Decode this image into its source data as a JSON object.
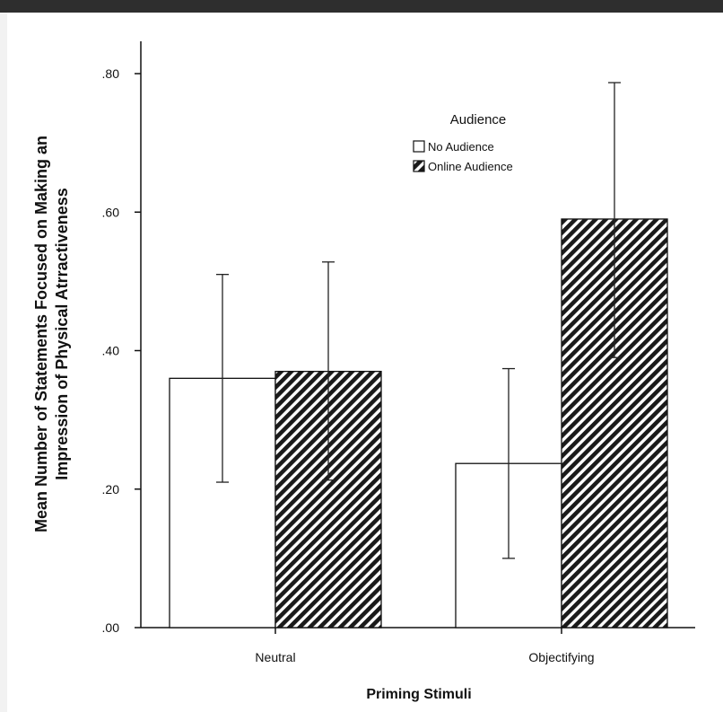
{
  "chart_data": {
    "type": "bar",
    "categories": [
      "Neutral",
      "Objectifying"
    ],
    "series": [
      {
        "name": "No Audience",
        "values": [
          0.36,
          0.237
        ],
        "error_low": [
          0.21,
          0.1
        ],
        "error_high": [
          0.51,
          0.374
        ],
        "fill": "#ffffff"
      },
      {
        "name": "Online Audience",
        "values": [
          0.37,
          0.59
        ],
        "error_low": [
          0.213,
          0.39
        ],
        "error_high": [
          0.528,
          0.787
        ],
        "fill": "hatched"
      }
    ],
    "xlabel": "Priming Stimuli",
    "ylabel_line1": "Mean Number of Statements Focused on Making an",
    "ylabel_line2": "Impression of Physical Atrractiveness",
    "ylim": [
      0,
      0.8
    ],
    "yticks": [
      {
        "value": 0.0,
        "label": ".00"
      },
      {
        "value": 0.2,
        "label": ".20"
      },
      {
        "value": 0.4,
        "label": ".40"
      },
      {
        "value": 0.6,
        "label": ".60"
      },
      {
        "value": 0.8,
        "label": ".80"
      }
    ],
    "legend_title": "Audience",
    "legend_position": "top-right",
    "grid": false
  }
}
